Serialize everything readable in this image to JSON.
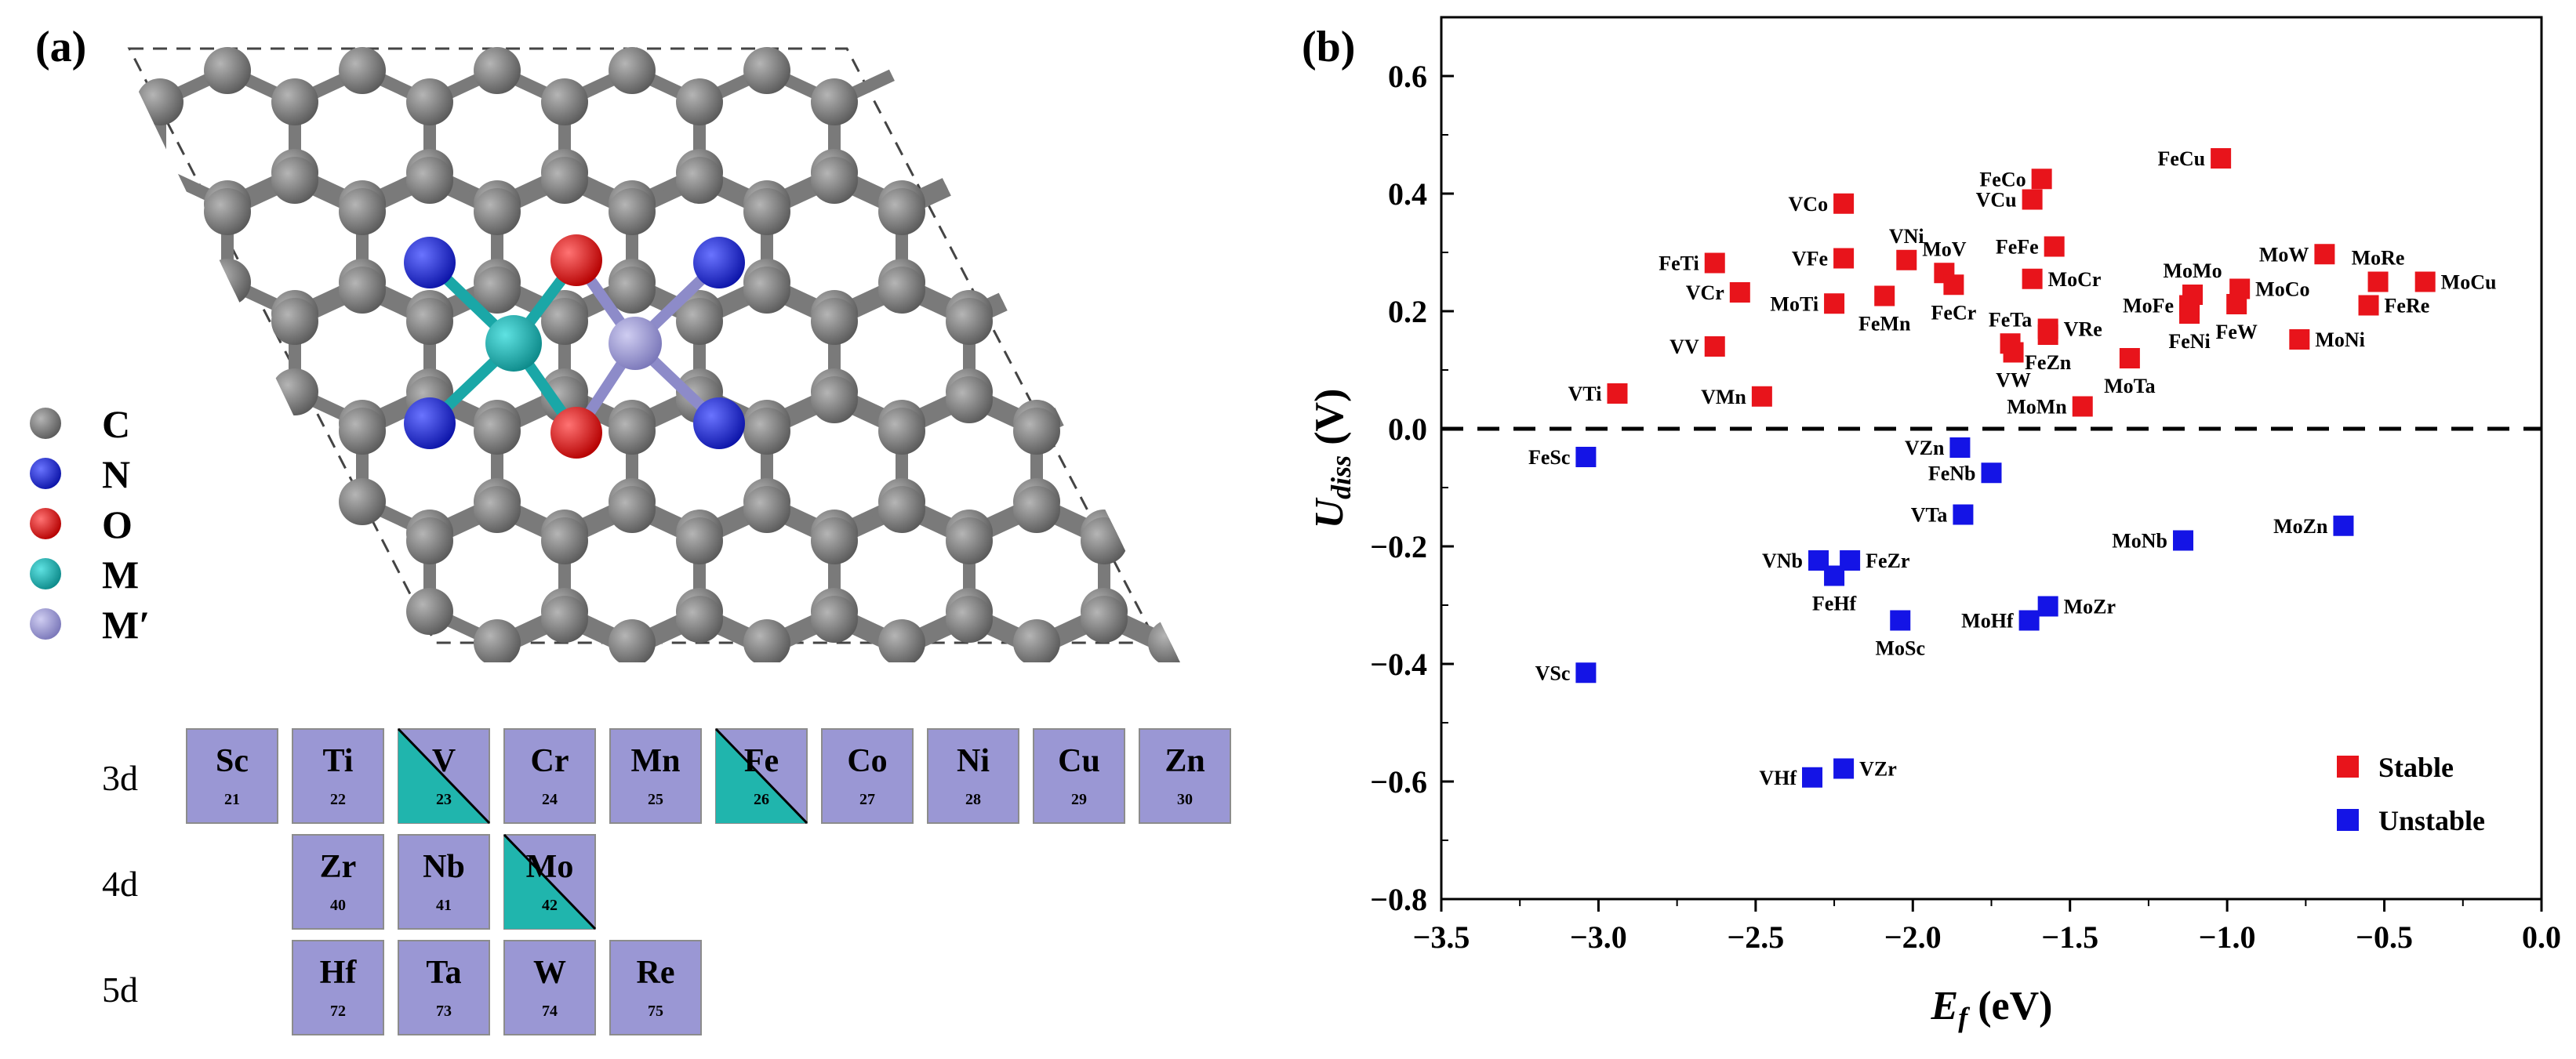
{
  "panel_a": {
    "label": "(a)",
    "legend": [
      {
        "symbol": "C",
        "color": "#777777"
      },
      {
        "symbol": "N",
        "color": "#1f2ad9"
      },
      {
        "symbol": "O",
        "color": "#e81515"
      },
      {
        "symbol": "M",
        "color": "#1ab3b3"
      },
      {
        "symbol": "M′",
        "color": "#9a97d4"
      }
    ],
    "rows": [
      {
        "label": "3d",
        "elements": [
          {
            "symbol": "Sc",
            "number": "21",
            "highlight": false
          },
          {
            "symbol": "Ti",
            "number": "22",
            "highlight": false
          },
          {
            "symbol": "V",
            "number": "23",
            "highlight": true
          },
          {
            "symbol": "Cr",
            "number": "24",
            "highlight": false
          },
          {
            "symbol": "Mn",
            "number": "25",
            "highlight": false
          },
          {
            "symbol": "Fe",
            "number": "26",
            "highlight": true
          },
          {
            "symbol": "Co",
            "number": "27",
            "highlight": false
          },
          {
            "symbol": "Ni",
            "number": "28",
            "highlight": false
          },
          {
            "symbol": "Cu",
            "number": "29",
            "highlight": false
          },
          {
            "symbol": "Zn",
            "number": "30",
            "highlight": false
          }
        ]
      },
      {
        "label": "4d",
        "elements": [
          {
            "symbol": "Zr",
            "number": "40",
            "highlight": false
          },
          {
            "symbol": "Nb",
            "number": "41",
            "highlight": false
          },
          {
            "symbol": "Mo",
            "number": "42",
            "highlight": true
          }
        ]
      },
      {
        "label": "5d",
        "elements": [
          {
            "symbol": "Hf",
            "number": "72",
            "highlight": false
          },
          {
            "symbol": "Ta",
            "number": "73",
            "highlight": false
          },
          {
            "symbol": "W",
            "number": "74",
            "highlight": false
          },
          {
            "symbol": "Re",
            "number": "75",
            "highlight": false
          }
        ]
      }
    ],
    "colors": {
      "tile": "#9a97d4",
      "highlight": "#20b5ad"
    }
  },
  "panel_b": {
    "label": "(b)"
  },
  "chart_data": {
    "type": "scatter",
    "title": "",
    "xlabel": "E_f (eV)",
    "ylabel": "U_diss (V)",
    "xlabel_parts": {
      "main": "E",
      "sub": "f",
      "unit": " (eV)"
    },
    "ylabel_parts": {
      "main": "U",
      "sub": "diss",
      "unit": " (V)"
    },
    "xlim": [
      -3.5,
      0.0
    ],
    "ylim": [
      -0.8,
      0.7
    ],
    "xticks": [
      -3.5,
      -3.0,
      -2.5,
      -2.0,
      -1.5,
      -1.0,
      -0.5,
      0.0
    ],
    "xtick_labels": [
      "−3.5",
      "−3.0",
      "−2.5",
      "−2.0",
      "−1.5",
      "−1.0",
      "−0.5",
      "0.0"
    ],
    "yticks": [
      0.6,
      0.4,
      0.2,
      0.0,
      -0.2,
      -0.4,
      -0.6,
      -0.8
    ],
    "ytick_labels": [
      "0.6",
      "0.4",
      "0.2",
      "0.0",
      "−0.2",
      "−0.4",
      "−0.6",
      "−0.8"
    ],
    "reference_line": {
      "y": 0.0,
      "style": "dashed"
    },
    "legend_position": "bottom-right",
    "series": [
      {
        "name": "Stable",
        "color": "#e8141b",
        "points": [
          {
            "label": "FeCu",
            "x": -1.02,
            "y": 0.46,
            "anchor": "end"
          },
          {
            "label": "FeCo",
            "x": -1.59,
            "y": 0.425,
            "anchor": "end"
          },
          {
            "label": "VCu",
            "x": -1.62,
            "y": 0.39,
            "anchor": "end"
          },
          {
            "label": "VCo",
            "x": -2.22,
            "y": 0.383,
            "anchor": "end"
          },
          {
            "label": "VNi",
            "x": -2.02,
            "y": 0.287,
            "anchor": "above"
          },
          {
            "label": "FeFe",
            "x": -1.55,
            "y": 0.31,
            "anchor": "end"
          },
          {
            "label": "MoV",
            "x": -1.9,
            "y": 0.265,
            "anchor": "above"
          },
          {
            "label": "FeTi",
            "x": -2.63,
            "y": 0.282,
            "anchor": "end"
          },
          {
            "label": "VFe",
            "x": -2.22,
            "y": 0.29,
            "anchor": "end"
          },
          {
            "label": "VCr",
            "x": -2.55,
            "y": 0.232,
            "anchor": "end"
          },
          {
            "label": "MoTi",
            "x": -2.25,
            "y": 0.213,
            "anchor": "end"
          },
          {
            "label": "FeMn",
            "x": -2.09,
            "y": 0.226,
            "anchor": "below"
          },
          {
            "label": "FeCr",
            "x": -1.87,
            "y": 0.245,
            "anchor": "below"
          },
          {
            "label": "MoCr",
            "x": -1.62,
            "y": 0.255,
            "anchor": "start"
          },
          {
            "label": "FeTa",
            "x": -1.69,
            "y": 0.145,
            "anchor": "above"
          },
          {
            "label": "VRe",
            "x": -1.57,
            "y": 0.17,
            "anchor": "start"
          },
          {
            "label": "FeZn",
            "x": -1.57,
            "y": 0.16,
            "anchor": "below"
          },
          {
            "label": "VW",
            "x": -1.68,
            "y": 0.13,
            "anchor": "below"
          },
          {
            "label": "MoTa",
            "x": -1.31,
            "y": 0.12,
            "anchor": "below"
          },
          {
            "label": "MoMn",
            "x": -1.46,
            "y": 0.038,
            "anchor": "end"
          },
          {
            "label": "MoMo",
            "x": -1.11,
            "y": 0.228,
            "anchor": "above"
          },
          {
            "label": "MoFe",
            "x": -1.12,
            "y": 0.21,
            "anchor": "end"
          },
          {
            "label": "FeNi",
            "x": -1.12,
            "y": 0.196,
            "anchor": "below"
          },
          {
            "label": "MoW",
            "x": -0.69,
            "y": 0.297,
            "anchor": "end"
          },
          {
            "label": "MoCo",
            "x": -0.96,
            "y": 0.238,
            "anchor": "start"
          },
          {
            "label": "FeW",
            "x": -0.97,
            "y": 0.212,
            "anchor": "below"
          },
          {
            "label": "MoNi",
            "x": -0.77,
            "y": 0.152,
            "anchor": "start"
          },
          {
            "label": "MoRe",
            "x": -0.52,
            "y": 0.25,
            "anchor": "above"
          },
          {
            "label": "FeRe",
            "x": -0.55,
            "y": 0.21,
            "anchor": "start"
          },
          {
            "label": "MoCu",
            "x": -0.37,
            "y": 0.25,
            "anchor": "start"
          },
          {
            "label": "VV",
            "x": -2.63,
            "y": 0.14,
            "anchor": "end"
          },
          {
            "label": "VTi",
            "x": -2.94,
            "y": 0.06,
            "anchor": "end"
          },
          {
            "label": "VMn",
            "x": -2.48,
            "y": 0.055,
            "anchor": "end"
          }
        ]
      },
      {
        "name": "Unstable",
        "color": "#1414e6",
        "points": [
          {
            "label": "FeSc",
            "x": -3.04,
            "y": -0.048,
            "anchor": "end"
          },
          {
            "label": "VZn",
            "x": -1.85,
            "y": -0.032,
            "anchor": "end"
          },
          {
            "label": "FeNb",
            "x": -1.75,
            "y": -0.075,
            "anchor": "end"
          },
          {
            "label": "VTa",
            "x": -1.84,
            "y": -0.146,
            "anchor": "end"
          },
          {
            "label": "MoNb",
            "x": -1.14,
            "y": -0.19,
            "anchor": "end"
          },
          {
            "label": "MoZn",
            "x": -0.63,
            "y": -0.165,
            "anchor": "end"
          },
          {
            "label": "VNb",
            "x": -2.3,
            "y": -0.224,
            "anchor": "end"
          },
          {
            "label": "FeZr",
            "x": -2.2,
            "y": -0.224,
            "anchor": "start"
          },
          {
            "label": "FeHf",
            "x": -2.25,
            "y": -0.25,
            "anchor": "below"
          },
          {
            "label": "MoHf",
            "x": -1.63,
            "y": -0.326,
            "anchor": "end"
          },
          {
            "label": "MoZr",
            "x": -1.57,
            "y": -0.302,
            "anchor": "start"
          },
          {
            "label": "MoSc",
            "x": -2.04,
            "y": -0.326,
            "anchor": "below"
          },
          {
            "label": "VSc",
            "x": -3.04,
            "y": -0.415,
            "anchor": "end"
          },
          {
            "label": "VHf",
            "x": -2.32,
            "y": -0.593,
            "anchor": "end"
          },
          {
            "label": "VZr",
            "x": -2.22,
            "y": -0.578,
            "anchor": "start"
          }
        ]
      }
    ]
  }
}
